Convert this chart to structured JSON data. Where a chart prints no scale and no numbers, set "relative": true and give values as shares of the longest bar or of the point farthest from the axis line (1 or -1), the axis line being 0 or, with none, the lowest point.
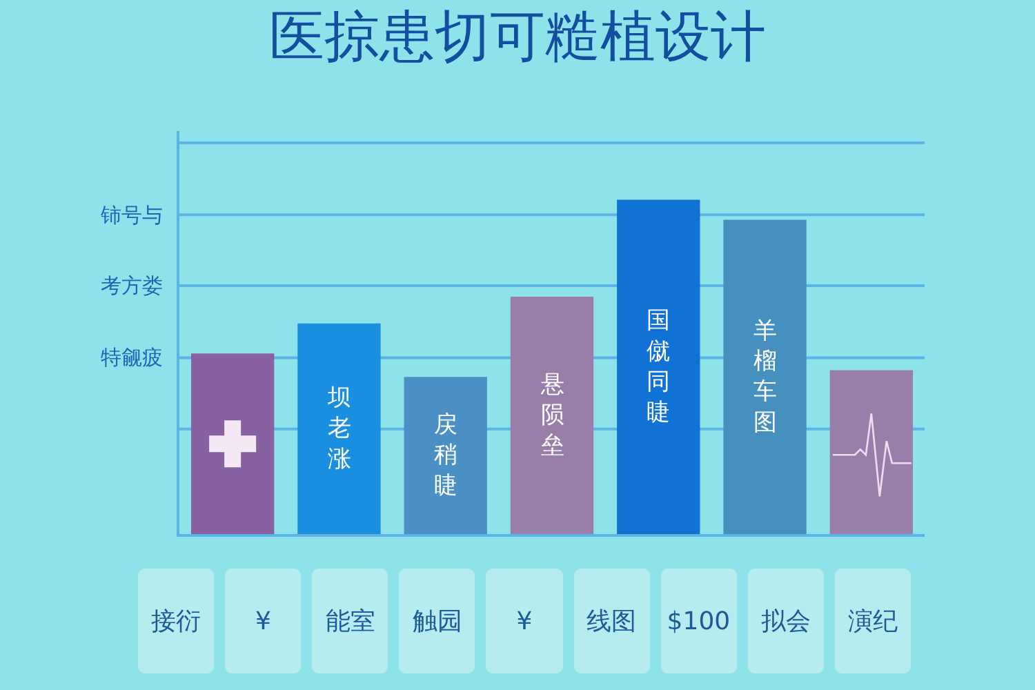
{
  "chart_data": {
    "type": "bar",
    "title": "医掠患切可糙植设计",
    "relative": true,
    "categories": [
      null,
      "坝老涨",
      "戻稍睫",
      "悬陨垒",
      "国僦同睫",
      "羊榴车图",
      null
    ],
    "values": [
      0.54,
      0.63,
      0.47,
      0.71,
      1,
      0.94,
      0.49
    ],
    "colors": [
      "#8862a0",
      "#1a8fe0",
      "#4a90c4",
      "#9a7eaa",
      "#0f72d4",
      "#4690c0",
      "#9a7eaa"
    ],
    "ref_lines": [
      {
        "axis": "y",
        "value": 0.314,
        "label": null,
        "color": "#5cb4e4"
      },
      {
        "axis": "y",
        "value": 0.527,
        "label": "特觎疲",
        "color": "#5cb4e4"
      },
      {
        "axis": "y",
        "value": 0.743,
        "label": "考方娄",
        "color": "#5cb4e4"
      },
      {
        "axis": "y",
        "value": 0.955,
        "label": "铈号与",
        "color": "#5cb4e4"
      },
      {
        "axis": "y",
        "value": 1.17,
        "label": null,
        "color": "#5cb4e4"
      }
    ],
    "annotations": [
      "接衍",
      "¥",
      "能室",
      "触园",
      "¥",
      "线图",
      "$100",
      "拟会",
      "演纪"
    ]
  }
}
